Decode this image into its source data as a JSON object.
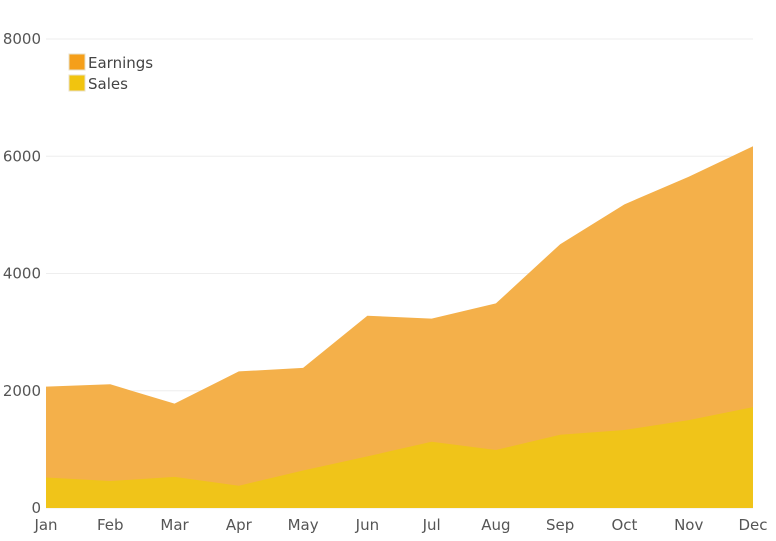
{
  "chart_data": {
    "type": "area",
    "stacked": true,
    "categories": [
      "Jan",
      "Feb",
      "Mar",
      "Apr",
      "May",
      "Jun",
      "Jul",
      "Aug",
      "Sep",
      "Oct",
      "Nov",
      "Dec"
    ],
    "series": [
      {
        "name": "Earnings",
        "color": "#f4b04a",
        "values": [
          1550,
          1650,
          1250,
          1950,
          1750,
          2400,
          2100,
          2500,
          3250,
          3850,
          4150,
          4450
        ]
      },
      {
        "name": "Sales",
        "color": "#f0c419",
        "values": [
          520,
          460,
          530,
          380,
          640,
          880,
          1130,
          990,
          1250,
          1330,
          1500,
          1720
        ]
      }
    ],
    "legend_colors": [
      "#f59f1a",
      "#f1c40f"
    ],
    "y_ticks": [
      0,
      2000,
      4000,
      6000,
      8000
    ],
    "ylim": [
      0,
      8000
    ],
    "grid": true,
    "legend_position": "top-left",
    "title": "",
    "xlabel": "",
    "ylabel": ""
  }
}
